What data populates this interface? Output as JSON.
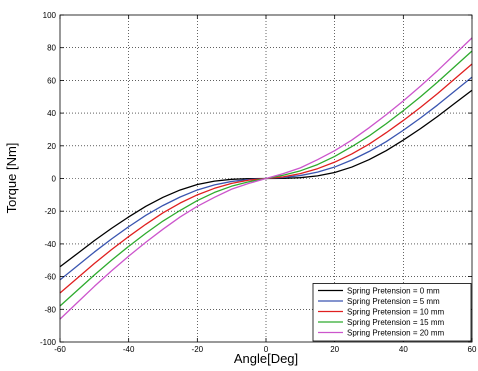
{
  "chart_data": {
    "type": "line",
    "xlabel": "Angle[Deg]",
    "ylabel": "Torque [Nm]",
    "xlim": [
      -60,
      60
    ],
    "ylim": [
      -100,
      100
    ],
    "xticks": [
      -60,
      -40,
      -20,
      0,
      20,
      40,
      60
    ],
    "yticks": [
      -100,
      -80,
      -60,
      -40,
      -20,
      0,
      20,
      40,
      60,
      80,
      100
    ],
    "grid": true,
    "legend_position": "bottom-right",
    "x": [
      -60,
      -55,
      -50,
      -45,
      -40,
      -35,
      -30,
      -25,
      -20,
      -15,
      -10,
      -5,
      0,
      5,
      10,
      15,
      20,
      25,
      30,
      35,
      40,
      45,
      50,
      55,
      60
    ],
    "series": [
      {
        "name": "Spring Pretension = 0 mm",
        "color": "#000000",
        "values": [
          -54,
          -46,
          -38,
          -30.5,
          -23.5,
          -17,
          -11.5,
          -7,
          -3.7,
          -1.6,
          -0.5,
          -0.1,
          0,
          0.1,
          0.5,
          1.6,
          3.7,
          7,
          11.5,
          17,
          23.5,
          30.5,
          38,
          46,
          54
        ]
      },
      {
        "name": "Spring Pretension = 5 mm",
        "color": "#3a55b0",
        "values": [
          -62,
          -53.5,
          -45,
          -37,
          -29.5,
          -22.5,
          -16.5,
          -11.3,
          -7,
          -3.9,
          -1.8,
          -0.6,
          0,
          0.6,
          1.8,
          3.9,
          7,
          11.3,
          16.5,
          22.5,
          29.5,
          37,
          45,
          53.5,
          62
        ]
      },
      {
        "name": "Spring Pretension = 10 mm",
        "color": "#e02020",
        "values": [
          -70,
          -61,
          -52,
          -43.5,
          -35.5,
          -28,
          -21,
          -15,
          -10,
          -6,
          -3,
          -1,
          0,
          1,
          3,
          6,
          10,
          15,
          21,
          28,
          35.5,
          43.5,
          52,
          61,
          70
        ]
      },
      {
        "name": "Spring Pretension = 15 mm",
        "color": "#2eab2e",
        "values": [
          -78,
          -68.5,
          -59,
          -50,
          -41.5,
          -33.5,
          -26,
          -19.5,
          -13.5,
          -8.5,
          -4.7,
          -2,
          0,
          2,
          4.7,
          8.5,
          13.5,
          19.5,
          26,
          33.5,
          41.5,
          50,
          59,
          68.5,
          78
        ]
      },
      {
        "name": "Spring Pretension = 20 mm",
        "color": "#cc55cc",
        "values": [
          -86,
          -76,
          -66,
          -56.5,
          -47.5,
          -39,
          -31,
          -23.5,
          -17,
          -11.5,
          -6.5,
          -3,
          0,
          3,
          6.5,
          11.5,
          17,
          23.5,
          31,
          39,
          47.5,
          56.5,
          66,
          76,
          86
        ]
      }
    ]
  }
}
